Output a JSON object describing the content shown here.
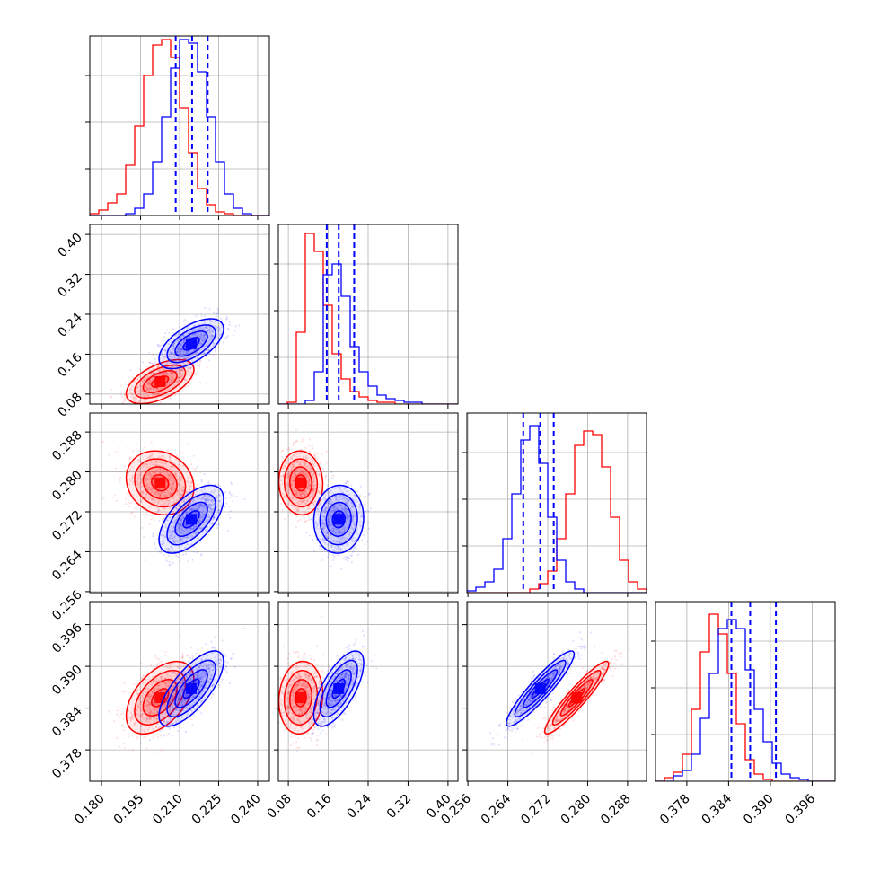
{
  "chart_data": {
    "type": "corner",
    "grid": true,
    "colors": {
      "series_a": "#ff0000",
      "series_b": "#0000ff"
    },
    "parameters": [
      {
        "ticks": [
          "0.180",
          "0.195",
          "0.210",
          "0.225",
          "0.240"
        ],
        "tick_values": [
          0.18,
          0.195,
          0.21,
          0.225,
          0.24
        ],
        "range": [
          0.1755,
          0.2445
        ]
      },
      {
        "ticks": [
          "0.08",
          "0.16",
          "0.24",
          "0.32",
          "0.40"
        ],
        "tick_values": [
          0.08,
          0.16,
          0.24,
          0.32,
          0.4
        ],
        "range": [
          0.06,
          0.42
        ]
      },
      {
        "ticks": [
          "0.256",
          "0.264",
          "0.272",
          "0.280",
          "0.288"
        ],
        "tick_values": [
          0.256,
          0.264,
          0.272,
          0.28,
          0.288
        ],
        "range": [
          0.2558,
          0.2918
        ]
      },
      {
        "ticks": [
          "0.378",
          "0.384",
          "0.390",
          "0.396"
        ],
        "tick_values": [
          0.378,
          0.384,
          0.39,
          0.396
        ],
        "range": [
          0.3735,
          0.3993
        ]
      }
    ],
    "row_tick_labels": [
      [],
      [
        "0.08",
        "0.16",
        "0.24",
        "0.32",
        "0.40"
      ],
      [
        "0.256",
        "0.264",
        "0.272",
        "0.280",
        "0.288"
      ],
      [
        "0.378",
        "0.384",
        "0.390",
        "0.396"
      ]
    ],
    "series": [
      {
        "color": "#ff0000",
        "means": [
          0.2025,
          0.105,
          0.2778,
          0.3855
        ],
        "sigmas": [
          0.0065,
          0.022,
          0.0032,
          0.0026
        ],
        "correlations": {
          "1-0": 0.55,
          "2-0": -0.15,
          "2-1": -0.05,
          "3-0": 0.5,
          "3-1": 0.1,
          "3-2": 0.93
        },
        "histograms": [
          [
            0.01,
            0.03,
            0.07,
            0.12,
            0.28,
            0.5,
            0.78,
            0.95,
            0.98,
            0.88,
            0.6,
            0.35,
            0.15,
            0.06,
            0.02,
            0.01,
            0,
            0,
            0,
            0
          ],
          [
            0,
            0.01,
            0.4,
            0.95,
            0.85,
            0.55,
            0.28,
            0.14,
            0.07,
            0.04,
            0.02,
            0.01,
            0.01,
            0,
            0,
            0,
            0,
            0,
            0,
            0
          ],
          [
            0,
            0,
            0,
            0,
            0,
            0,
            0,
            0.02,
            0.05,
            0.12,
            0.3,
            0.55,
            0.82,
            0.9,
            0.88,
            0.7,
            0.42,
            0.18,
            0.06,
            0.02
          ],
          [
            0,
            0.02,
            0.05,
            0.15,
            0.4,
            0.72,
            0.93,
            0.82,
            0.6,
            0.32,
            0.12,
            0.04,
            0.01,
            0,
            0,
            0,
            0,
            0,
            0,
            0
          ]
        ]
      },
      {
        "color": "#0000ff",
        "means": [
          0.2145,
          0.181,
          0.2705,
          0.3868
        ],
        "sigmas": [
          0.0062,
          0.025,
          0.0034,
          0.0027
        ],
        "correlations": {
          "1-0": 0.6,
          "2-0": 0.6,
          "2-1": 0.05,
          "3-0": 0.72,
          "3-1": 0.68,
          "3-2": 0.92
        },
        "quantiles": [
          [
            0.2085,
            0.2148,
            0.2208
          ],
          [
            0.157,
            0.181,
            0.212
          ],
          [
            0.2671,
            0.2705,
            0.2732
          ],
          [
            0.3844,
            0.3871,
            0.3908
          ]
        ],
        "histograms": [
          [
            0,
            0,
            0,
            0,
            0.01,
            0.04,
            0.12,
            0.3,
            0.55,
            0.82,
            0.98,
            0.96,
            0.8,
            0.55,
            0.3,
            0.12,
            0.04,
            0.01,
            0,
            0
          ],
          [
            0,
            0,
            0,
            0.02,
            0.18,
            0.72,
            0.78,
            0.6,
            0.32,
            0.18,
            0.1,
            0.05,
            0.03,
            0.02,
            0.01,
            0.01,
            0,
            0,
            0,
            0
          ],
          [
            0.01,
            0.03,
            0.06,
            0.13,
            0.3,
            0.55,
            0.85,
            0.93,
            0.72,
            0.42,
            0.18,
            0.06,
            0.02,
            0,
            0,
            0,
            0,
            0,
            0,
            0
          ],
          [
            0,
            0,
            0.03,
            0.06,
            0.15,
            0.35,
            0.6,
            0.85,
            0.9,
            0.85,
            0.62,
            0.4,
            0.22,
            0.1,
            0.04,
            0.02,
            0.01,
            0,
            0,
            0
          ]
        ]
      }
    ]
  }
}
